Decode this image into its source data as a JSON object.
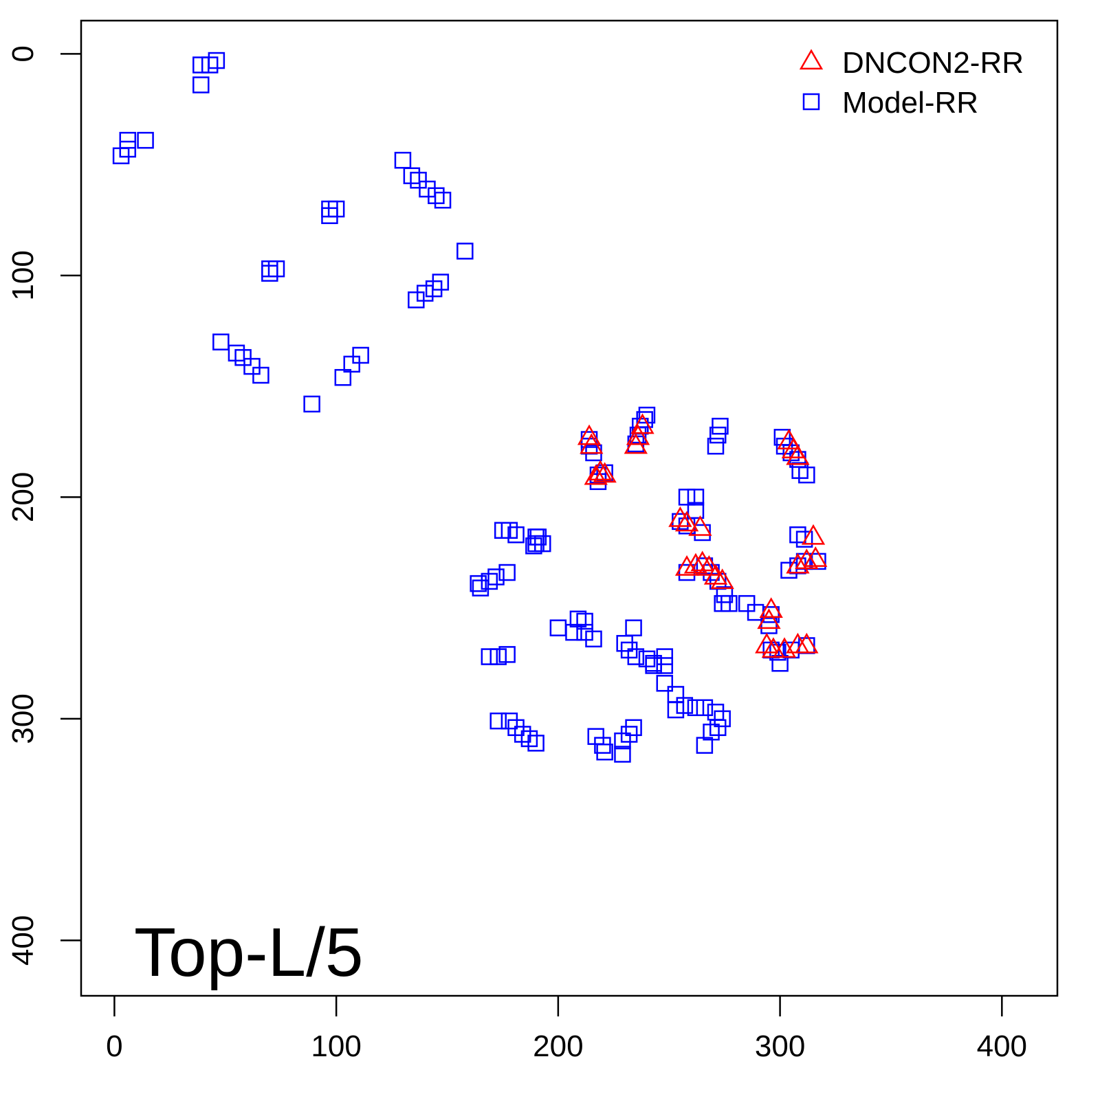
{
  "chart_data": {
    "type": "scatter",
    "title": "",
    "annotation": "Top-L/5",
    "xlabel": "",
    "ylabel": "",
    "xlim": [
      -15,
      425
    ],
    "ylim": [
      -15,
      425
    ],
    "y_inverted": true,
    "xticks": [
      0,
      100,
      200,
      300,
      400
    ],
    "yticks": [
      0,
      100,
      200,
      300,
      400
    ],
    "grid": false,
    "legend_position": "top-right",
    "series": [
      {
        "name": "DNCON2-RR",
        "marker": "triangle-open",
        "color": "#ff0000",
        "points": [
          [
            214,
            173
          ],
          [
            215,
            177
          ],
          [
            219,
            189
          ],
          [
            221,
            190
          ],
          [
            217,
            191
          ],
          [
            238,
            168
          ],
          [
            236,
            173
          ],
          [
            235,
            177
          ],
          [
            304,
            175
          ],
          [
            306,
            179
          ],
          [
            308,
            182
          ],
          [
            255,
            210
          ],
          [
            258,
            212
          ],
          [
            264,
            214
          ],
          [
            315,
            218
          ],
          [
            308,
            231
          ],
          [
            312,
            229
          ],
          [
            316,
            228
          ],
          [
            258,
            232
          ],
          [
            262,
            231
          ],
          [
            265,
            230
          ],
          [
            268,
            232
          ],
          [
            271,
            236
          ],
          [
            274,
            238
          ],
          [
            296,
            251
          ],
          [
            295,
            256
          ],
          [
            294,
            267
          ],
          [
            297,
            269
          ],
          [
            302,
            269
          ],
          [
            308,
            267
          ],
          [
            312,
            267
          ]
        ]
      },
      {
        "name": "Model-RR",
        "marker": "square-open",
        "color": "#0000ff",
        "points": [
          [
            46,
            3
          ],
          [
            43,
            5
          ],
          [
            39,
            5
          ],
          [
            39,
            14
          ],
          [
            3,
            46
          ],
          [
            6,
            43
          ],
          [
            6,
            39
          ],
          [
            14,
            39
          ],
          [
            130,
            48
          ],
          [
            134,
            55
          ],
          [
            137,
            57
          ],
          [
            141,
            61
          ],
          [
            145,
            64
          ],
          [
            148,
            66
          ],
          [
            97,
            70
          ],
          [
            100,
            70
          ],
          [
            97,
            73
          ],
          [
            158,
            89
          ],
          [
            70,
            97
          ],
          [
            73,
            97
          ],
          [
            70,
            99
          ],
          [
            147,
            103
          ],
          [
            144,
            106
          ],
          [
            140,
            108
          ],
          [
            136,
            111
          ],
          [
            48,
            130
          ],
          [
            55,
            135
          ],
          [
            58,
            137
          ],
          [
            62,
            141
          ],
          [
            66,
            145
          ],
          [
            111,
            136
          ],
          [
            107,
            140
          ],
          [
            103,
            146
          ],
          [
            89,
            158
          ],
          [
            214,
            174
          ],
          [
            214,
            177
          ],
          [
            216,
            180
          ],
          [
            218,
            190
          ],
          [
            221,
            189
          ],
          [
            218,
            193
          ],
          [
            240,
            163
          ],
          [
            239,
            165
          ],
          [
            237,
            168
          ],
          [
            236,
            172
          ],
          [
            235,
            176
          ],
          [
            273,
            168
          ],
          [
            272,
            172
          ],
          [
            271,
            177
          ],
          [
            301,
            173
          ],
          [
            302,
            177
          ],
          [
            305,
            180
          ],
          [
            308,
            183
          ],
          [
            309,
            188
          ],
          [
            312,
            190
          ],
          [
            258,
            200
          ],
          [
            262,
            200
          ],
          [
            262,
            206
          ],
          [
            255,
            211
          ],
          [
            258,
            213
          ],
          [
            265,
            216
          ],
          [
            308,
            217
          ],
          [
            311,
            219
          ],
          [
            304,
            233
          ],
          [
            308,
            231
          ],
          [
            311,
            229
          ],
          [
            317,
            229
          ],
          [
            258,
            234
          ],
          [
            266,
            231
          ],
          [
            269,
            234
          ],
          [
            272,
            238
          ],
          [
            275,
            244
          ],
          [
            277,
            248
          ],
          [
            274,
            248
          ],
          [
            285,
            248
          ],
          [
            289,
            252
          ],
          [
            296,
            253
          ],
          [
            295,
            258
          ],
          [
            296,
            269
          ],
          [
            299,
            270
          ],
          [
            300,
            275
          ],
          [
            305,
            269
          ],
          [
            312,
            267
          ],
          [
            175,
            215
          ],
          [
            178,
            215
          ],
          [
            181,
            217
          ],
          [
            190,
            218
          ],
          [
            193,
            221
          ],
          [
            189,
            222
          ],
          [
            191,
            218
          ],
          [
            190,
            221
          ],
          [
            165,
            241
          ],
          [
            164,
            239
          ],
          [
            169,
            238
          ],
          [
            172,
            236
          ],
          [
            177,
            234
          ],
          [
            200,
            259
          ],
          [
            209,
            255
          ],
          [
            212,
            256
          ],
          [
            212,
            261
          ],
          [
            216,
            264
          ],
          [
            207,
            261
          ],
          [
            169,
            272
          ],
          [
            173,
            272
          ],
          [
            177,
            271
          ],
          [
            234,
            259
          ],
          [
            230,
            266
          ],
          [
            232,
            269
          ],
          [
            235,
            272
          ],
          [
            240,
            273
          ],
          [
            243,
            275
          ],
          [
            248,
            272
          ],
          [
            248,
            276
          ],
          [
            243,
            276
          ],
          [
            248,
            284
          ],
          [
            253,
            289
          ],
          [
            253,
            296
          ],
          [
            257,
            294
          ],
          [
            262,
            295
          ],
          [
            266,
            295
          ],
          [
            271,
            297
          ],
          [
            274,
            300
          ],
          [
            272,
            304
          ],
          [
            269,
            306
          ],
          [
            266,
            312
          ],
          [
            173,
            301
          ],
          [
            178,
            301
          ],
          [
            181,
            304
          ],
          [
            184,
            307
          ],
          [
            187,
            309
          ],
          [
            190,
            311
          ],
          [
            217,
            308
          ],
          [
            220,
            312
          ],
          [
            221,
            315
          ],
          [
            229,
            310
          ],
          [
            229,
            316
          ],
          [
            234,
            304
          ],
          [
            232,
            307
          ]
        ]
      }
    ]
  }
}
